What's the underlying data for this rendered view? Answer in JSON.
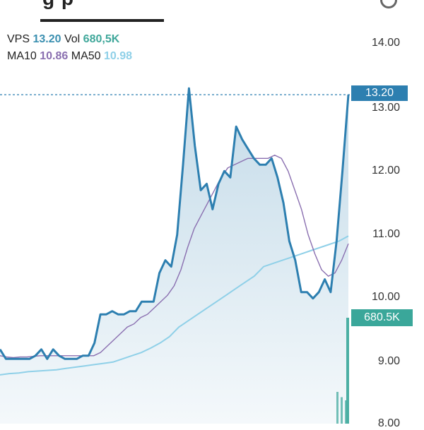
{
  "header": {
    "title_fragment": "g p"
  },
  "info": {
    "symbol": "VPS",
    "price": "13.20",
    "vol_label": "Vol",
    "vol_value": "680,5K",
    "ma10_label": "MA10",
    "ma10_value": "10.86",
    "ma50_label": "MA50",
    "ma50_value": "10.98"
  },
  "axis": {
    "y_ticks": [
      "14.00",
      "13.00",
      "12.00",
      "11.00",
      "10.00",
      "9.00",
      "8.00"
    ]
  },
  "badges": {
    "price": "13.20",
    "volume": "680.5K"
  },
  "colors": {
    "price_line": "#2d7fb0",
    "ma10": "#8a6fb0",
    "ma50": "#8fd0e8",
    "volume": "#3aa79a"
  },
  "chart_data": {
    "type": "line",
    "ylim": [
      8.0,
      14.0
    ],
    "series": [
      {
        "name": "VPS",
        "values": [
          9.2,
          9.05,
          9.05,
          9.05,
          9.05,
          9.05,
          9.1,
          9.2,
          9.05,
          9.2,
          9.1,
          9.05,
          9.05,
          9.05,
          9.1,
          9.1,
          9.3,
          9.75,
          9.75,
          9.8,
          9.75,
          9.75,
          9.8,
          9.8,
          9.95,
          9.95,
          9.95,
          10.4,
          10.6,
          10.5,
          11.0,
          12.1,
          13.3,
          12.4,
          11.7,
          11.8,
          11.4,
          11.8,
          12.0,
          11.9,
          12.7,
          12.5,
          12.35,
          12.2,
          12.1,
          12.1,
          12.2,
          11.9,
          11.5,
          10.9,
          10.6,
          10.1,
          10.1,
          10.0,
          10.1,
          10.3,
          10.1,
          10.9,
          12.0,
          13.2
        ]
      },
      {
        "name": "MA10",
        "values": [
          9.1,
          9.08,
          9.07,
          9.08,
          9.08,
          9.09,
          9.1,
          9.1,
          9.1,
          9.1,
          9.1,
          9.1,
          9.1,
          9.1,
          9.1,
          9.15,
          9.25,
          9.35,
          9.45,
          9.55,
          9.6,
          9.7,
          9.75,
          9.85,
          9.95,
          10.05,
          10.2,
          10.45,
          10.8,
          11.1,
          11.3,
          11.5,
          11.7,
          11.9,
          12.05,
          12.1,
          12.15,
          12.2,
          12.2,
          12.2,
          12.2,
          12.25,
          12.2,
          12.0,
          11.7,
          11.4,
          11.0,
          10.7,
          10.45,
          10.35,
          10.4,
          10.6,
          10.86
        ]
      },
      {
        "name": "MA50",
        "values": [
          8.8,
          8.82,
          8.83,
          8.85,
          8.86,
          8.87,
          8.88,
          8.9,
          8.92,
          8.94,
          8.96,
          8.98,
          9.0,
          9.05,
          9.1,
          9.15,
          9.22,
          9.3,
          9.4,
          9.55,
          9.65,
          9.75,
          9.85,
          9.95,
          10.05,
          10.15,
          10.25,
          10.35,
          10.5,
          10.55,
          10.6,
          10.65,
          10.7,
          10.75,
          10.8,
          10.85,
          10.9,
          10.98
        ]
      }
    ],
    "volume": [
      0.3,
      0.25,
      0.22,
      1.0
    ]
  }
}
